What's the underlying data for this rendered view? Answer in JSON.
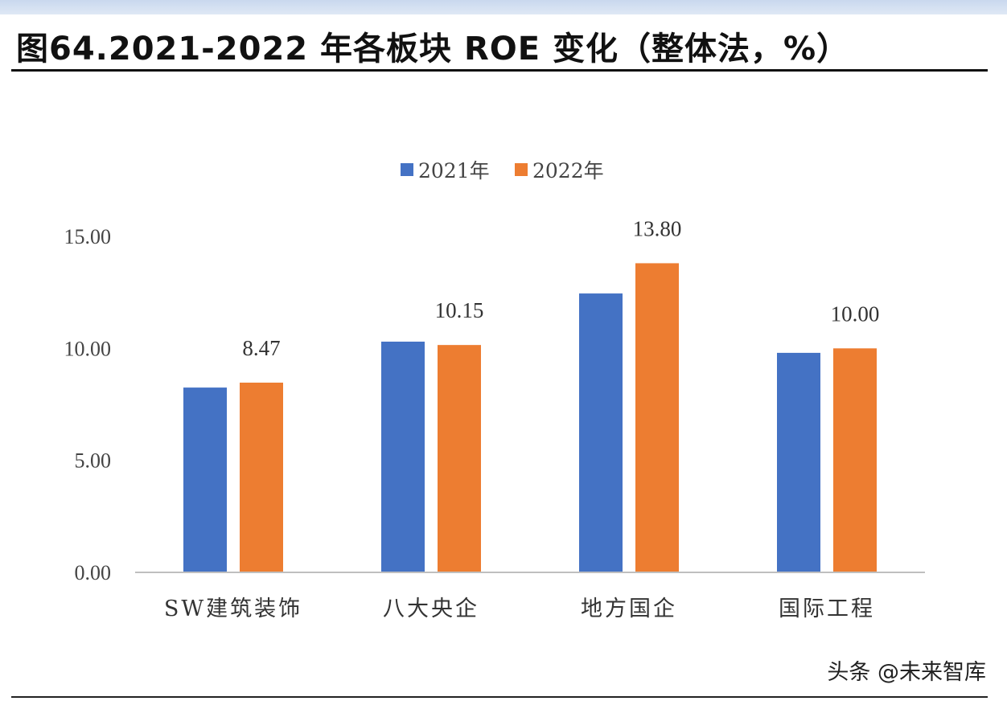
{
  "title": "图64.2021-2022 年各板块 ROE 变化（整体法，%）",
  "watermark": "头条 @未来智库",
  "chart_data": {
    "type": "bar",
    "title": "图64.2021-2022 年各板块 ROE 变化（整体法，%）",
    "categories": [
      "SW建筑装饰",
      "八大央企",
      "地方国企",
      "国际工程"
    ],
    "series": [
      {
        "name": "2021年",
        "color": "#4472c4",
        "values": [
          8.25,
          10.3,
          12.45,
          9.8
        ],
        "labels": [
          null,
          null,
          null,
          null
        ]
      },
      {
        "name": "2022年",
        "color": "#ed7d31",
        "values": [
          8.47,
          10.15,
          13.8,
          10.0
        ],
        "labels": [
          "8.47",
          "10.15",
          "13.80",
          "10.00"
        ]
      }
    ],
    "yticks": [
      "0.00",
      "5.00",
      "10.00",
      "15.00"
    ],
    "ylim": [
      0,
      15
    ],
    "grid": false,
    "legend": "top-center",
    "xlabel": "",
    "ylabel": ""
  }
}
